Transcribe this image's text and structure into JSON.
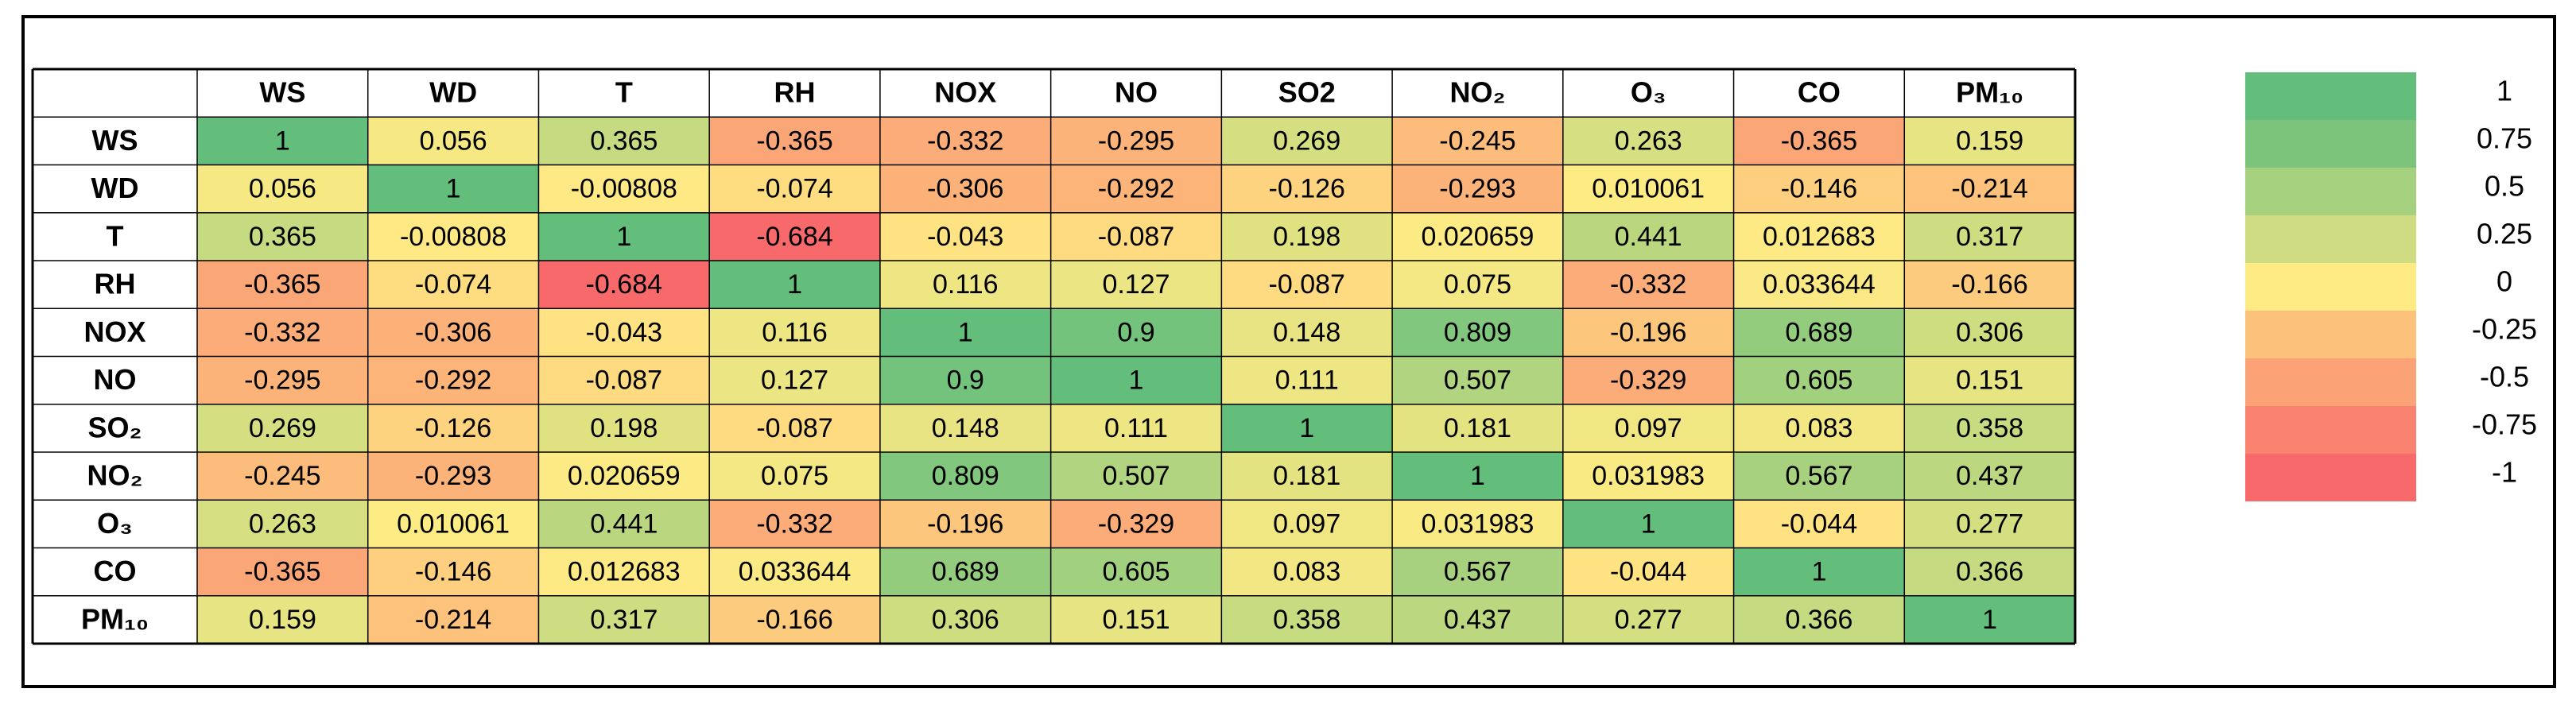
{
  "chart_data": {
    "type": "heatmap",
    "x_categories": [
      "WS",
      "WD",
      "T",
      "RH",
      "NOX",
      "NO",
      "SO2",
      "NO₂",
      "O₃",
      "CO",
      "PM₁₀"
    ],
    "y_categories": [
      "WS",
      "WD",
      "T",
      "RH",
      "NOX",
      "NO",
      "SO₂",
      "NO₂",
      "O₃",
      "CO",
      "PM₁₀"
    ],
    "values": [
      [
        1,
        0.056,
        0.365,
        -0.365,
        -0.332,
        -0.295,
        0.269,
        -0.245,
        0.263,
        -0.365,
        0.159
      ],
      [
        0.056,
        1,
        -0.00808,
        -0.074,
        -0.306,
        -0.292,
        -0.126,
        -0.293,
        0.010061,
        -0.146,
        -0.214
      ],
      [
        0.365,
        -0.00808,
        1,
        -0.684,
        -0.043,
        -0.087,
        0.198,
        0.020659,
        0.441,
        0.012683,
        0.317
      ],
      [
        -0.365,
        -0.074,
        -0.684,
        1,
        0.116,
        0.127,
        -0.087,
        0.075,
        -0.332,
        0.033644,
        -0.166
      ],
      [
        -0.332,
        -0.306,
        -0.043,
        0.116,
        1,
        0.9,
        0.148,
        0.809,
        -0.196,
        0.689,
        0.306
      ],
      [
        -0.295,
        -0.292,
        -0.087,
        0.127,
        0.9,
        1,
        0.111,
        0.507,
        -0.329,
        0.605,
        0.151
      ],
      [
        0.269,
        -0.126,
        0.198,
        -0.087,
        0.148,
        0.111,
        1,
        0.181,
        0.097,
        0.083,
        0.358
      ],
      [
        -0.245,
        -0.293,
        0.020659,
        0.075,
        0.809,
        0.507,
        0.181,
        1,
        0.031983,
        0.567,
        0.437
      ],
      [
        0.263,
        0.010061,
        0.441,
        -0.332,
        -0.196,
        -0.329,
        0.097,
        0.031983,
        1,
        -0.044,
        0.277
      ],
      [
        -0.365,
        -0.146,
        0.012683,
        0.033644,
        0.689,
        0.605,
        0.083,
        0.567,
        -0.044,
        1,
        0.366
      ],
      [
        0.159,
        -0.214,
        0.317,
        -0.166,
        0.306,
        0.151,
        0.358,
        0.437,
        0.277,
        0.366,
        1
      ]
    ],
    "colors": [
      "#f8696b",
      "#ffeb84",
      "#63be7b"
    ],
    "legend": {
      "ticks": [
        1,
        0.75,
        0.5,
        0.25,
        0,
        -0.25,
        -0.5,
        -0.75,
        -1
      ],
      "colors": [
        "#63be7b",
        "#7cc47c",
        "#a5d07e",
        "#cfdc81",
        "#ffeb84",
        "#fcc27b",
        "#fba276",
        "#f98370",
        "#f8696b"
      ]
    }
  }
}
